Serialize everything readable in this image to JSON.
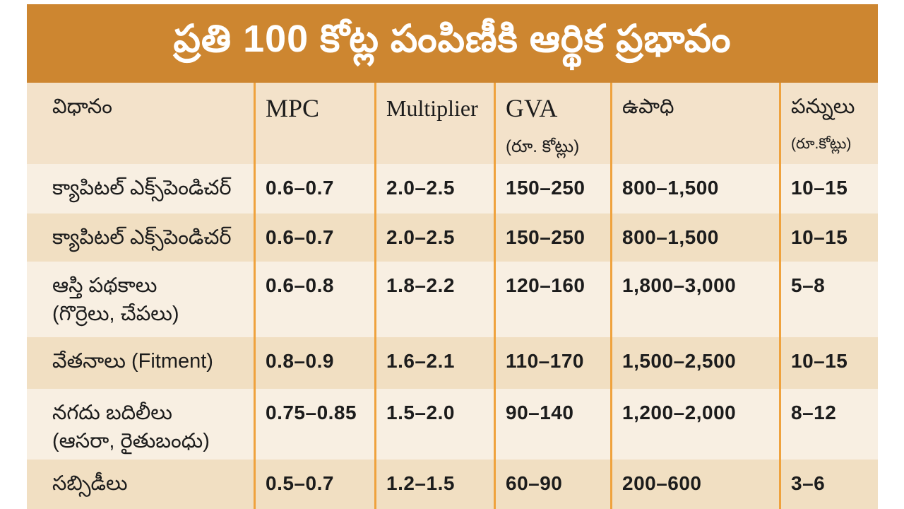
{
  "theme": {
    "banner_orange": "#cd8630",
    "divider_orange": "#efa23d",
    "header_row_bg": "#f3e2ca",
    "row_light_bg": "#f8efe2",
    "row_dark_bg": "#f1dfc2",
    "text_color": "#1c1c1c",
    "title_text_color": "#ffffff",
    "page_bg": "#ffffff"
  },
  "title": {
    "text": "ప్రతి 100 కోట్ల పంపిణీకి ఆర్థిక ప్రభావం"
  },
  "table": {
    "header": {
      "method": "విధానం",
      "mpc": "MPC",
      "multiplier": "Multiplier",
      "gva": "GVA",
      "gva_sub": "(రూ. కోట్లు)",
      "employment": "ఉపాధి",
      "taxes": "పన్నులు",
      "taxes_sub": "(రూ.కోట్లు)"
    },
    "rows": [
      {
        "method1": "క్యాపిటల్ ఎక్స్‌పెండిచర్",
        "method2": "",
        "mpc": "0.6–0.7",
        "multiplier": "2.0–2.5",
        "gva": "150–250",
        "employment": "800–1,500",
        "taxes": "10–15"
      },
      {
        "method1": "క్యాపిటల్ ఎక్స్‌పెండిచర్",
        "method2": "",
        "mpc": "0.6–0.7",
        "multiplier": "2.0–2.5",
        "gva": "150–250",
        "employment": "800–1,500",
        "taxes": "10–15"
      },
      {
        "method1": "ఆస్తి పథకాలు",
        "method2": "(గొర్రెలు, చేపలు)",
        "mpc": "0.6–0.8",
        "multiplier": "1.8–2.2",
        "gva": "120–160",
        "employment": "1,800–3,000",
        "taxes": "5–8"
      },
      {
        "method1": "వేతనాలు (Fitment)",
        "method2": "",
        "mpc": "0.8–0.9",
        "multiplier": "1.6–2.1",
        "gva": "110–170",
        "employment": "1,500–2,500",
        "taxes": "10–15"
      },
      {
        "method1": "నగదు బదిలీలు",
        "method2": "(ఆసరా, రైతుబంధు)",
        "mpc": "0.75–0.85",
        "multiplier": "1.5–2.0",
        "gva": "90–140",
        "employment": "1,200–2,000",
        "taxes": "8–12"
      },
      {
        "method1": "సబ్సిడీలు",
        "method2": "",
        "mpc": "0.5–0.7",
        "multiplier": "1.2–1.5",
        "gva": "60–90",
        "employment": "200–600",
        "taxes": "3–6"
      }
    ]
  },
  "chart_data": {
    "type": "table",
    "title": "ప్రతి 100 కోట్ల పంపిణీకి ఆర్థిక ప్రభావం",
    "columns": [
      "విధానం",
      "MPC",
      "Multiplier",
      "GVA (రూ. కోట్లు)",
      "ఉపాధి",
      "పన్నులు (రూ.కోట్లు)"
    ],
    "rows": [
      [
        "క్యాపిటల్ ఎక్స్‌పెండిచర్",
        "0.6–0.7",
        "2.0–2.5",
        "150–250",
        "800–1,500",
        "10–15"
      ],
      [
        "క్యాపిటల్ ఎక్స్‌పెండిచర్",
        "0.6–0.7",
        "2.0–2.5",
        "150–250",
        "800–1,500",
        "10–15"
      ],
      [
        "ఆస్తి పథకాలు (గొర్రెలు, చేపలు)",
        "0.6–0.8",
        "1.8–2.2",
        "120–160",
        "1,800–3,000",
        "5–8"
      ],
      [
        "వేతనాలు (Fitment)",
        "0.8–0.9",
        "1.6–2.1",
        "110–170",
        "1,500–2,500",
        "10–15"
      ],
      [
        "నగదు బదిలీలు (ఆసరా, రైతుబంధు)",
        "0.75–0.85",
        "1.5–2.0",
        "90–140",
        "1,200–2,000",
        "8–12"
      ],
      [
        "సబ్సిడీలు",
        "0.5–0.7",
        "1.2–1.5",
        "60–90",
        "200–600",
        "3–6"
      ]
    ]
  }
}
